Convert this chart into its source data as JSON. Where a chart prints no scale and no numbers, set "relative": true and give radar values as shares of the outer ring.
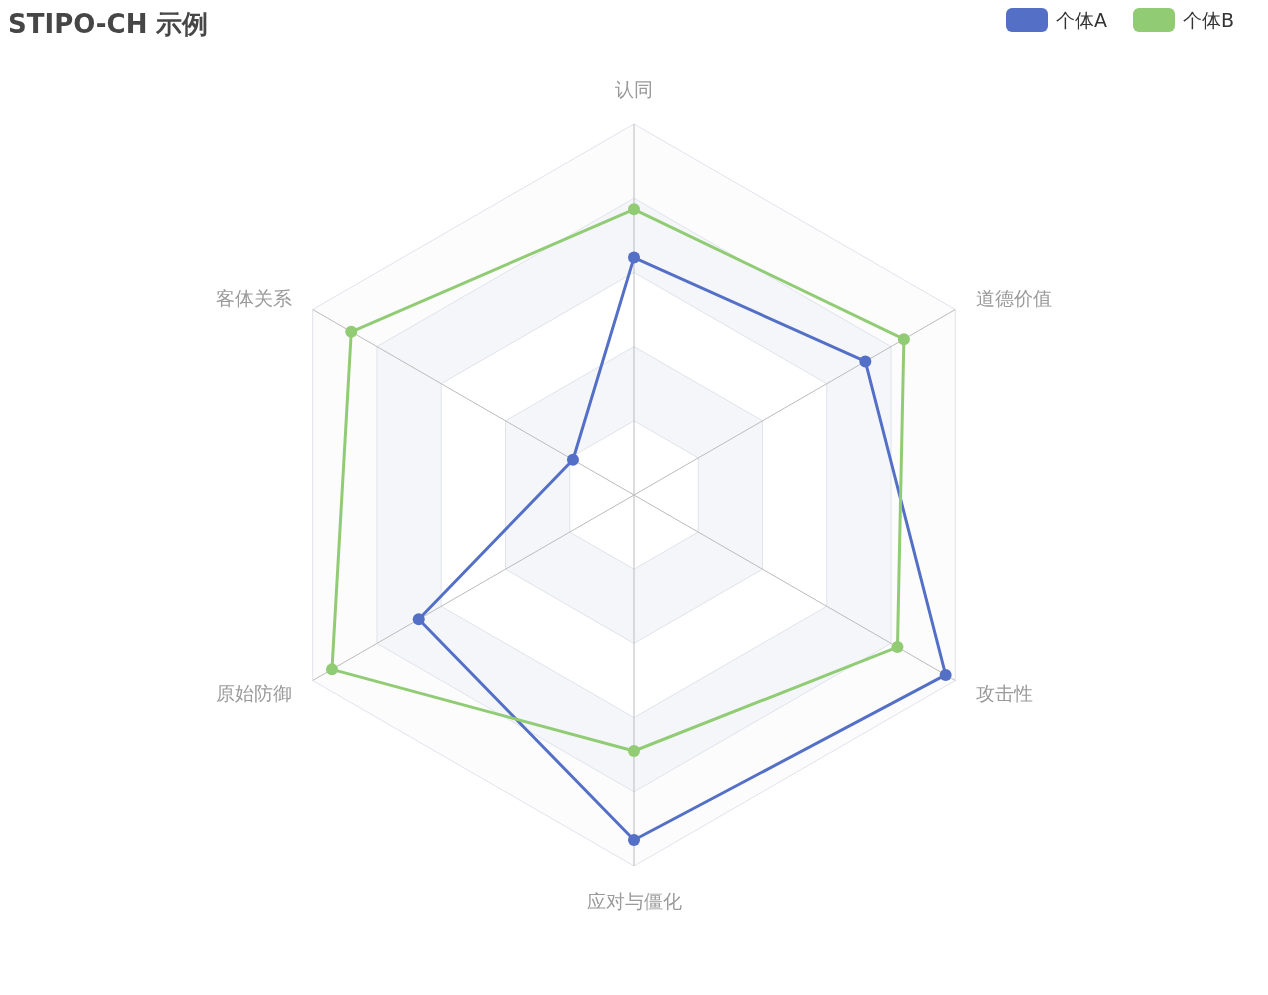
{
  "chart_data": {
    "type": "radar",
    "title": "STIPO-CH 示例",
    "relative": true,
    "categories": [
      "认同",
      "道德价值",
      "攻击性",
      "应对与僵化",
      "原始防御",
      "客体关系"
    ],
    "series": [
      {
        "name": "个体A",
        "color": "#5470c6",
        "values": [
          0.64,
          0.72,
          0.97,
          0.93,
          0.67,
          0.19
        ]
      },
      {
        "name": "个体B",
        "color": "#91cc75",
        "values": [
          0.77,
          0.84,
          0.82,
          0.69,
          0.94,
          0.88
        ]
      }
    ],
    "legend": "top right",
    "marker": "circle",
    "line_style": "solid"
  }
}
